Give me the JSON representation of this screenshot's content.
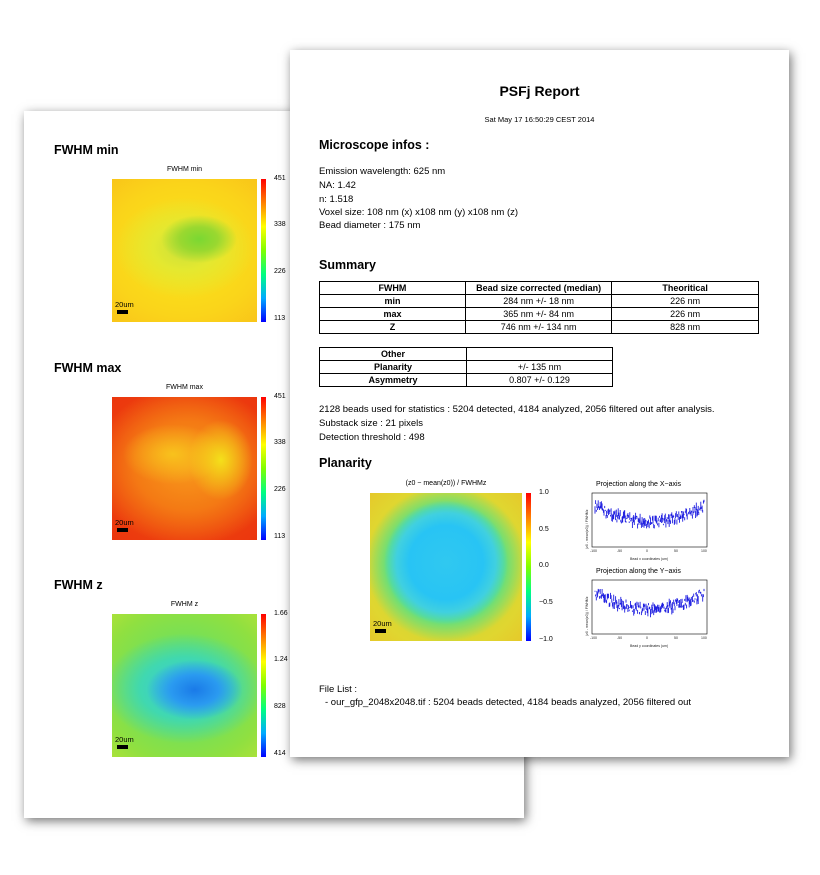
{
  "back_page": {
    "sections": [
      {
        "heading": "FWHM min",
        "map_title": "FWHM min",
        "ticks": [
          "451",
          "338",
          "226",
          "113"
        ],
        "scale_label": "20um"
      },
      {
        "heading": "FWHM max",
        "map_title": "FWHM max",
        "ticks": [
          "451",
          "338",
          "226",
          "113"
        ],
        "scale_label": "20um"
      },
      {
        "heading": "FWHM z",
        "map_title": "FWHM z",
        "ticks": [
          "1.66",
          "1.24",
          "828",
          "414"
        ],
        "scale_label": "20um"
      }
    ]
  },
  "report": {
    "title": "PSFj Report",
    "date": "Sat May 17 16:50:29 CEST 2014",
    "microscope_heading": "Microscope infos :",
    "microscope_lines": [
      "Emission wavelength: 625 nm",
      "NA: 1.42",
      "n: 1.518",
      "Voxel size: 108 nm (x) x108 nm (y) x108 nm (z)",
      "Bead diameter : 175 nm"
    ],
    "summary_heading": "Summary",
    "fwhm_table": {
      "headers": [
        "FWHM",
        "Bead size corrected (median)",
        "Theoritical"
      ],
      "rows": [
        [
          "min",
          "284 nm +/- 18 nm",
          "226 nm"
        ],
        [
          "max",
          "365 nm +/- 84 nm",
          "226 nm"
        ],
        [
          "Z",
          "746 nm +/- 134 nm",
          "828 nm"
        ]
      ]
    },
    "other_table": {
      "headers": [
        "Other",
        ""
      ],
      "rows": [
        [
          "Planarity",
          "+/- 135 nm"
        ],
        [
          "Asymmetry",
          "0.807 +/- 0.129"
        ]
      ]
    },
    "stats_lines": [
      "2128 beads used for statistics : 5204 detected, 4184 analyzed, 2056 filtered out after analysis.",
      "Substack size : 21 pixels",
      "Detection threshold : 498"
    ],
    "planarity_heading": "Planarity",
    "planarity_map": {
      "title": "(z0 − mean(z0)) / FWHMz",
      "ticks": [
        "1.0",
        "0.5",
        "0.0",
        "−0.5",
        "−1.0"
      ],
      "scale_label": "20um"
    },
    "projection_x": {
      "title": "Projection along the X−axis",
      "xlabel": "Bead x coordinates (um)",
      "ylabel": "(z0 - mean(z0)) / FWHMz",
      "ticks": [
        "-100",
        "-50",
        "0",
        "50",
        "100"
      ]
    },
    "projection_y": {
      "title": "Projection along the Y−axis",
      "xlabel": "Bead y coordinates (um)",
      "ylabel": "(z0 - mean(z0)) / FWHMz",
      "ticks": [
        "-100",
        "-50",
        "0",
        "50",
        "100"
      ]
    },
    "file_list_heading": "File List :",
    "file_list_items": [
      "- our_gfp_2048x2048.tif : 5204 beads detected, 4184 beads analyzed, 2056 filtered out"
    ]
  },
  "colors": {
    "colormap": [
      "#0000ff",
      "#00aaff",
      "#00ff80",
      "#80ff00",
      "#ffff00",
      "#ff8000",
      "#ff0000"
    ],
    "scatter": "#1e1ee0"
  }
}
